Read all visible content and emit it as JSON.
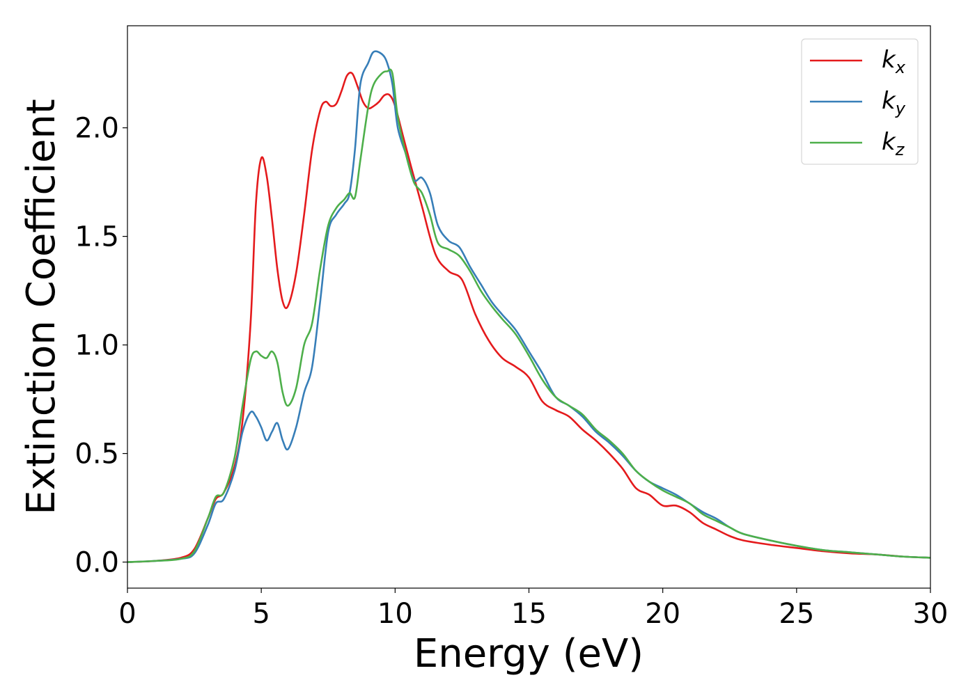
{
  "chart_data": {
    "type": "line",
    "xlabel": "Energy (eV)",
    "ylabel": "Extinction Coefficient",
    "xlim": [
      0,
      30
    ],
    "ylim": [
      -0.12,
      2.47
    ],
    "xticks": [
      0,
      5,
      10,
      15,
      20,
      25,
      30
    ],
    "xtick_labels": [
      "0",
      "5",
      "10",
      "15",
      "20",
      "25",
      "30"
    ],
    "yticks": [
      0.0,
      0.5,
      1.0,
      1.5,
      2.0
    ],
    "ytick_labels": [
      "0.0",
      "0.5",
      "1.0",
      "1.5",
      "2.0"
    ],
    "grid": false,
    "legend_position": "top-right",
    "series": [
      {
        "name": "k_x",
        "label_main": "k",
        "label_sub": "x",
        "color": "#e41a1c",
        "x": [
          0,
          1,
          2,
          2.5,
          3,
          3.3,
          3.6,
          4,
          4.3,
          4.6,
          4.8,
          5.0,
          5.2,
          5.4,
          5.6,
          5.8,
          6.0,
          6.3,
          6.6,
          6.9,
          7.2,
          7.4,
          7.6,
          7.8,
          8.0,
          8.2,
          8.4,
          8.6,
          8.8,
          9.0,
          9.2,
          9.4,
          9.6,
          9.8,
          10.0,
          10.3,
          10.6,
          11.0,
          11.5,
          12.0,
          12.5,
          13.0,
          13.5,
          14.0,
          14.5,
          15.0,
          15.5,
          16.0,
          16.5,
          17.0,
          17.5,
          18.0,
          18.5,
          19.0,
          19.5,
          20.0,
          20.5,
          21.0,
          21.5,
          22.0,
          22.5,
          23.0,
          24.0,
          25.0,
          26.0,
          27.0,
          28.0,
          29.0,
          30.0
        ],
        "y": [
          0.0,
          0.005,
          0.02,
          0.06,
          0.2,
          0.29,
          0.32,
          0.44,
          0.65,
          1.1,
          1.65,
          1.86,
          1.78,
          1.58,
          1.35,
          1.2,
          1.18,
          1.33,
          1.6,
          1.9,
          2.08,
          2.12,
          2.1,
          2.11,
          2.17,
          2.24,
          2.25,
          2.19,
          2.12,
          2.09,
          2.1,
          2.12,
          2.15,
          2.15,
          2.1,
          1.96,
          1.82,
          1.64,
          1.42,
          1.34,
          1.3,
          1.14,
          1.02,
          0.94,
          0.9,
          0.85,
          0.74,
          0.7,
          0.67,
          0.61,
          0.56,
          0.5,
          0.43,
          0.34,
          0.31,
          0.26,
          0.26,
          0.23,
          0.18,
          0.15,
          0.12,
          0.1,
          0.08,
          0.065,
          0.05,
          0.04,
          0.035,
          0.025,
          0.02
        ]
      },
      {
        "name": "k_y",
        "label_main": "k",
        "label_sub": "y",
        "color": "#377eb8",
        "x": [
          0,
          1,
          2,
          2.5,
          3,
          3.3,
          3.6,
          4,
          4.3,
          4.6,
          4.8,
          5.0,
          5.2,
          5.4,
          5.6,
          5.8,
          6.0,
          6.3,
          6.6,
          6.9,
          7.2,
          7.5,
          7.8,
          8.1,
          8.3,
          8.5,
          8.7,
          9.0,
          9.2,
          9.5,
          9.7,
          9.9,
          10.1,
          10.4,
          10.7,
          11.0,
          11.3,
          11.6,
          12.0,
          12.4,
          12.8,
          13.2,
          13.6,
          14.0,
          14.5,
          15.0,
          15.5,
          16.0,
          16.5,
          17.0,
          17.5,
          18.0,
          18.5,
          19.0,
          19.5,
          20.0,
          20.5,
          21.0,
          21.5,
          22.0,
          22.5,
          23.0,
          24.0,
          25.0,
          26.0,
          27.0,
          28.0,
          29.0,
          30.0
        ],
        "y": [
          0.0,
          0.005,
          0.015,
          0.04,
          0.17,
          0.27,
          0.29,
          0.42,
          0.6,
          0.69,
          0.67,
          0.62,
          0.56,
          0.6,
          0.64,
          0.56,
          0.52,
          0.62,
          0.78,
          0.9,
          1.2,
          1.52,
          1.6,
          1.65,
          1.7,
          1.9,
          2.2,
          2.3,
          2.35,
          2.34,
          2.3,
          2.2,
          2.0,
          1.88,
          1.76,
          1.77,
          1.7,
          1.55,
          1.48,
          1.45,
          1.36,
          1.28,
          1.2,
          1.14,
          1.07,
          0.97,
          0.87,
          0.76,
          0.72,
          0.67,
          0.6,
          0.55,
          0.49,
          0.42,
          0.37,
          0.34,
          0.31,
          0.27,
          0.23,
          0.2,
          0.16,
          0.13,
          0.1,
          0.075,
          0.055,
          0.045,
          0.035,
          0.025,
          0.02
        ]
      },
      {
        "name": "k_z",
        "label_main": "k",
        "label_sub": "z",
        "color": "#4daf4a",
        "x": [
          0,
          1,
          2,
          2.5,
          3,
          3.3,
          3.6,
          4,
          4.3,
          4.6,
          4.8,
          5.0,
          5.2,
          5.4,
          5.6,
          5.8,
          6.0,
          6.3,
          6.6,
          6.9,
          7.2,
          7.5,
          7.8,
          8.1,
          8.3,
          8.5,
          8.7,
          9.0,
          9.2,
          9.5,
          9.7,
          9.9,
          10.1,
          10.4,
          10.7,
          11.0,
          11.3,
          11.6,
          12.0,
          12.4,
          12.8,
          13.2,
          13.6,
          14.0,
          14.5,
          15.0,
          15.5,
          16.0,
          16.5,
          17.0,
          17.5,
          18.0,
          18.5,
          19.0,
          19.5,
          20.0,
          20.5,
          21.0,
          21.5,
          22.0,
          22.5,
          23.0,
          24.0,
          25.0,
          26.0,
          27.0,
          28.0,
          29.0,
          30.0
        ],
        "y": [
          0.0,
          0.005,
          0.015,
          0.05,
          0.2,
          0.3,
          0.32,
          0.48,
          0.72,
          0.93,
          0.97,
          0.95,
          0.94,
          0.97,
          0.92,
          0.78,
          0.72,
          0.8,
          1.0,
          1.1,
          1.35,
          1.55,
          1.63,
          1.67,
          1.7,
          1.68,
          1.85,
          2.1,
          2.2,
          2.25,
          2.26,
          2.25,
          2.05,
          1.88,
          1.75,
          1.7,
          1.6,
          1.47,
          1.44,
          1.41,
          1.34,
          1.25,
          1.18,
          1.12,
          1.05,
          0.95,
          0.84,
          0.76,
          0.72,
          0.68,
          0.61,
          0.56,
          0.5,
          0.42,
          0.37,
          0.33,
          0.3,
          0.27,
          0.22,
          0.19,
          0.16,
          0.13,
          0.1,
          0.075,
          0.055,
          0.045,
          0.035,
          0.025,
          0.02
        ]
      }
    ]
  }
}
